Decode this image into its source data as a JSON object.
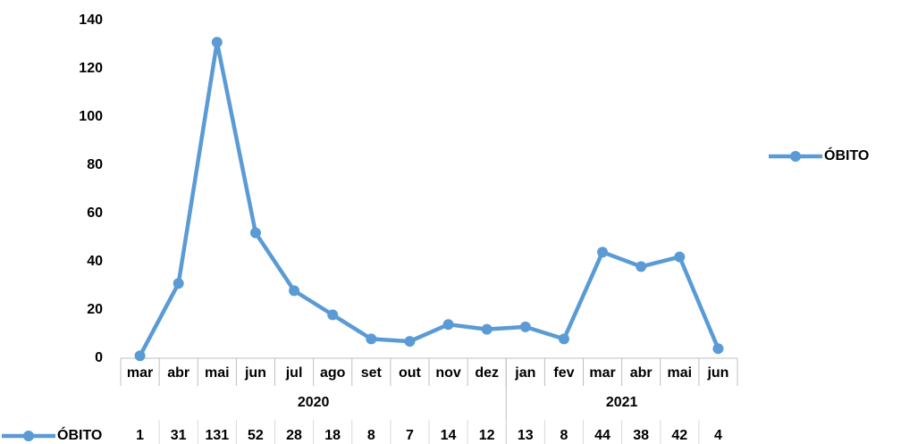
{
  "chart_data": {
    "type": "line",
    "category_groups": [
      {
        "name": "2020",
        "categories": [
          "mar",
          "abr",
          "mai",
          "jun",
          "jul",
          "ago",
          "set",
          "out",
          "nov",
          "dez"
        ]
      },
      {
        "name": "2021",
        "categories": [
          "jan",
          "fev",
          "mar",
          "abr",
          "mai",
          "jun"
        ]
      }
    ],
    "series": [
      {
        "name": "ÓBITO",
        "color": "#5b9bd5",
        "values": [
          1,
          31,
          131,
          52,
          28,
          18,
          8,
          7,
          14,
          12,
          13,
          8,
          44,
          38,
          42,
          4
        ]
      }
    ],
    "ylim": [
      0,
      140
    ],
    "yticks": [
      0,
      20,
      40,
      60,
      80,
      100,
      120,
      140
    ],
    "grid": false,
    "legend": "right",
    "data_table": true
  }
}
